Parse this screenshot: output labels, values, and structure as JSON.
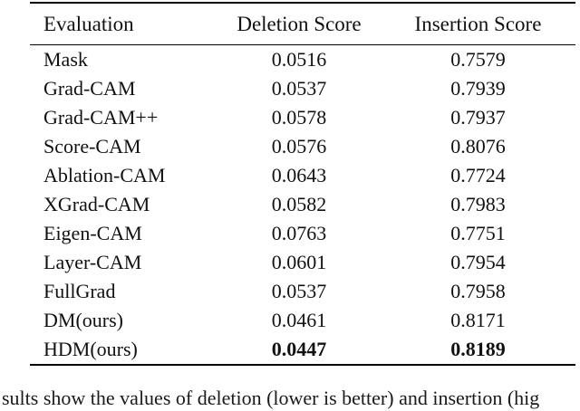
{
  "table": {
    "columns": [
      "Evaluation",
      "Deletion Score",
      "Insertion Score"
    ],
    "rows": [
      {
        "name": "Mask",
        "deletion": "0.0516",
        "insertion": "0.7579"
      },
      {
        "name": "Grad-CAM",
        "deletion": "0.0537",
        "insertion": "0.7939"
      },
      {
        "name": "Grad-CAM++",
        "deletion": "0.0578",
        "insertion": "0.7937"
      },
      {
        "name": "Score-CAM",
        "deletion": "0.0576",
        "insertion": "0.8076"
      },
      {
        "name": "Ablation-CAM",
        "deletion": "0.0643",
        "insertion": "0.7724"
      },
      {
        "name": "XGrad-CAM",
        "deletion": "0.0582",
        "insertion": "0.7983"
      },
      {
        "name": "Eigen-CAM",
        "deletion": "0.0763",
        "insertion": "0.7751"
      },
      {
        "name": "Layer-CAM",
        "deletion": "0.0601",
        "insertion": "0.7954"
      },
      {
        "name": "FullGrad",
        "deletion": "0.0537",
        "insertion": "0.7958"
      },
      {
        "name": "DM(ours)",
        "deletion": "0.0461",
        "insertion": "0.8171"
      },
      {
        "name": "HDM(ours)",
        "deletion": "0.0447",
        "insertion": "0.8189"
      }
    ]
  },
  "caption_fragment": "sults show the values of deletion (lower is better) and insertion (hig"
}
